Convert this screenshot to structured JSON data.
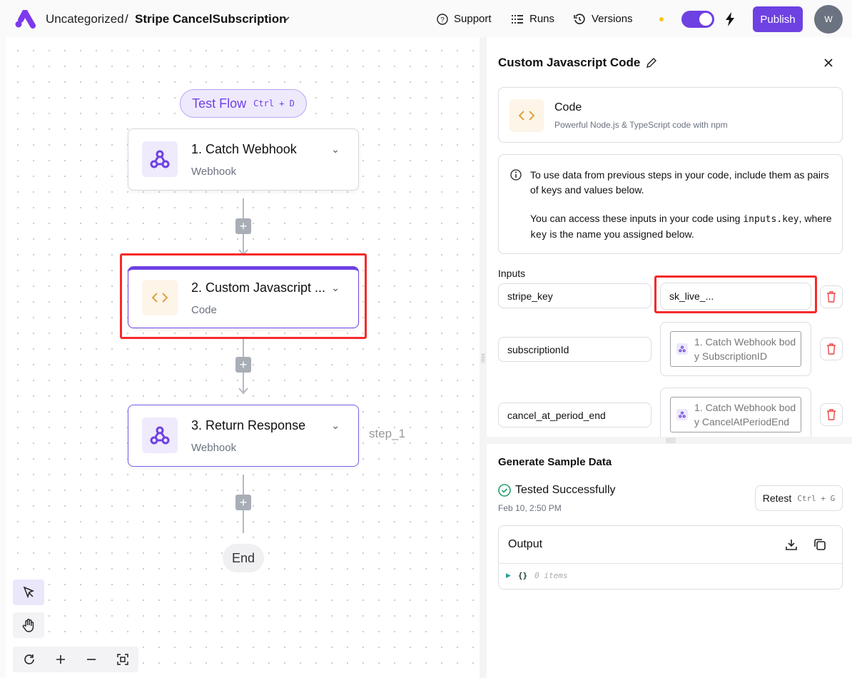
{
  "header": {
    "breadcrumb_folder": "Uncategorized",
    "separator": "/",
    "flow_name": "Stripe CancelSubscription",
    "support": "Support",
    "runs": "Runs",
    "versions": "Versions",
    "publish": "Publish",
    "avatar": "W",
    "accent": "#6e41e2"
  },
  "canvas": {
    "test_flow": "Test Flow",
    "test_flow_shortcut": "Ctrl + D",
    "nodes": [
      {
        "title": "1. Catch Webhook",
        "subtitle": "Webhook",
        "icon": "webhook-icon"
      },
      {
        "title": "2. Custom Javascript ...",
        "subtitle": "Code",
        "icon": "code-icon"
      },
      {
        "title": "3. Return Response",
        "subtitle": "Webhook",
        "icon": "webhook-icon"
      }
    ],
    "step_label": "step_1",
    "end": "End"
  },
  "panel": {
    "title": "Custom Javascript Code",
    "piece_name": "Code",
    "piece_desc": "Powerful Node.js & TypeScript code with npm",
    "info_1": "To use data from previous steps in your code, include them as pairs of keys and values below.",
    "info_2_a": "You can access these inputs in your code using ",
    "info_2_code1": "inputs.key",
    "info_2_b": ", where ",
    "info_2_code2": "key",
    "info_2_c": " is the name you assigned below.",
    "inputs_label": "Inputs",
    "inputs": [
      {
        "key": "stripe_key",
        "value": "sk_live_..."
      },
      {
        "key": "subscriptionId",
        "value": "1. Catch Webhook body SubscriptionID"
      },
      {
        "key": "cancel_at_period_end",
        "value": "1. Catch Webhook body CancelAtPeriodEnd"
      }
    ],
    "sample_title": "Generate Sample Data",
    "status": "Tested Successfully",
    "timestamp": "Feb 10, 2:50 PM",
    "retest": "Retest",
    "retest_shortcut": "Ctrl + G",
    "output_label": "Output",
    "output_braces": "{}",
    "output_items": "0 items"
  }
}
